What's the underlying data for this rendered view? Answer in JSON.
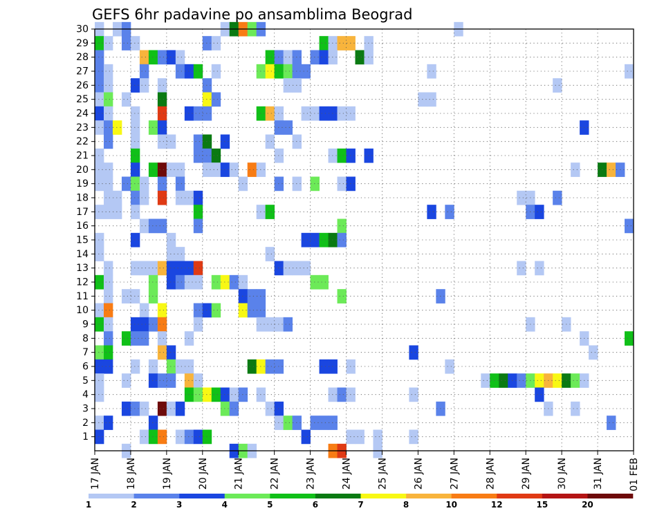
{
  "chart_data": {
    "type": "heatmap",
    "title": "GEFS 6hr padavine po ansamblima Beograd",
    "x_labels": [
      "17 JAN",
      "18 JAN",
      "19 JAN",
      "20 JAN",
      "21 JAN",
      "22 JAN",
      "23 JAN",
      "24 JAN",
      "25 JAN",
      "26 JAN",
      "27 JAN",
      "28 JAN",
      "29 JAN",
      "30 JAN",
      "31 JAN",
      "01 FEB"
    ],
    "y_labels": [
      "1",
      "2",
      "3",
      "4",
      "5",
      "6",
      "7",
      "8",
      "9",
      "10",
      "11",
      "12",
      "13",
      "14",
      "15",
      "16",
      "17",
      "18",
      "19",
      "20",
      "21",
      "22",
      "23",
      "24",
      "25",
      "26",
      "27",
      "28",
      "29",
      "30"
    ],
    "x_range": [
      0,
      60
    ],
    "y_range": [
      0,
      30
    ],
    "grid": true,
    "legend_position": "bottom",
    "legend_labels": [
      "1",
      "2",
      "3",
      "4",
      "5",
      "6",
      "7",
      "8",
      "10",
      "12",
      "15",
      "20"
    ],
    "levels": [
      {
        "level": 1,
        "color": "#b4c8f4"
      },
      {
        "level": 2,
        "color": "#5a82ea"
      },
      {
        "level": 3,
        "color": "#1a46e0"
      },
      {
        "level": 4,
        "color": "#6cea58"
      },
      {
        "level": 5,
        "color": "#10c018"
      },
      {
        "level": 6,
        "color": "#0a7a12"
      },
      {
        "level": 7,
        "color": "#f8f814"
      },
      {
        "level": 8,
        "color": "#f8b43c"
      },
      {
        "level": 9,
        "color": "#f87c14"
      },
      {
        "level": 10,
        "color": "#e03a14"
      },
      {
        "level": 11,
        "color": "#b41414"
      },
      {
        "level": 12,
        "color": "#6e0a0a"
      }
    ],
    "cells": [
      [
        0,
        30,
        1
      ],
      [
        2,
        30,
        1
      ],
      [
        3,
        30,
        2
      ],
      [
        14,
        30,
        1
      ],
      [
        15,
        30,
        6
      ],
      [
        16,
        30,
        9
      ],
      [
        17,
        30,
        4
      ],
      [
        18,
        30,
        2
      ],
      [
        40,
        30,
        1
      ],
      [
        0,
        29,
        5
      ],
      [
        1,
        29,
        1
      ],
      [
        3,
        29,
        2
      ],
      [
        4,
        29,
        1
      ],
      [
        12,
        29,
        2
      ],
      [
        13,
        29,
        1
      ],
      [
        25,
        29,
        5
      ],
      [
        26,
        29,
        1
      ],
      [
        27,
        29,
        8
      ],
      [
        28,
        29,
        8
      ],
      [
        30,
        29,
        1
      ],
      [
        0,
        28,
        2
      ],
      [
        5,
        28,
        8
      ],
      [
        6,
        28,
        5
      ],
      [
        7,
        28,
        2
      ],
      [
        8,
        28,
        3
      ],
      [
        9,
        28,
        1
      ],
      [
        19,
        28,
        5
      ],
      [
        20,
        28,
        2
      ],
      [
        21,
        28,
        1
      ],
      [
        22,
        28,
        2
      ],
      [
        24,
        28,
        2
      ],
      [
        25,
        28,
        3
      ],
      [
        26,
        28,
        1
      ],
      [
        29,
        28,
        6
      ],
      [
        30,
        28,
        1
      ],
      [
        0,
        27,
        2
      ],
      [
        1,
        27,
        1
      ],
      [
        5,
        27,
        2
      ],
      [
        9,
        27,
        2
      ],
      [
        10,
        27,
        3
      ],
      [
        11,
        27,
        5
      ],
      [
        13,
        27,
        1
      ],
      [
        18,
        27,
        4
      ],
      [
        19,
        27,
        7
      ],
      [
        20,
        27,
        5
      ],
      [
        21,
        27,
        4
      ],
      [
        22,
        27,
        2
      ],
      [
        23,
        27,
        2
      ],
      [
        37,
        27,
        1
      ],
      [
        59,
        27,
        1
      ],
      [
        0,
        26,
        2
      ],
      [
        1,
        26,
        1
      ],
      [
        4,
        26,
        3
      ],
      [
        5,
        26,
        1
      ],
      [
        7,
        26,
        1
      ],
      [
        12,
        26,
        2
      ],
      [
        21,
        26,
        1
      ],
      [
        22,
        26,
        1
      ],
      [
        51,
        26,
        1
      ],
      [
        0,
        25,
        1
      ],
      [
        1,
        25,
        4
      ],
      [
        3,
        25,
        1
      ],
      [
        7,
        25,
        6
      ],
      [
        12,
        25,
        7
      ],
      [
        13,
        25,
        2
      ],
      [
        36,
        25,
        1
      ],
      [
        37,
        25,
        1
      ],
      [
        0,
        24,
        3
      ],
      [
        1,
        24,
        1
      ],
      [
        4,
        24,
        1
      ],
      [
        7,
        24,
        10
      ],
      [
        10,
        24,
        3
      ],
      [
        11,
        24,
        2
      ],
      [
        12,
        24,
        2
      ],
      [
        18,
        24,
        5
      ],
      [
        19,
        24,
        8
      ],
      [
        20,
        24,
        1
      ],
      [
        23,
        24,
        1
      ],
      [
        24,
        24,
        1
      ],
      [
        25,
        24,
        3
      ],
      [
        26,
        24,
        3
      ],
      [
        27,
        24,
        1
      ],
      [
        28,
        24,
        1
      ],
      [
        0,
        23,
        1
      ],
      [
        1,
        23,
        2
      ],
      [
        2,
        23,
        7
      ],
      [
        4,
        23,
        1
      ],
      [
        6,
        23,
        4
      ],
      [
        7,
        23,
        3
      ],
      [
        20,
        23,
        2
      ],
      [
        21,
        23,
        2
      ],
      [
        54,
        23,
        3
      ],
      [
        1,
        22,
        2
      ],
      [
        4,
        22,
        1
      ],
      [
        7,
        22,
        1
      ],
      [
        8,
        22,
        1
      ],
      [
        11,
        22,
        2
      ],
      [
        12,
        22,
        6
      ],
      [
        14,
        22,
        3
      ],
      [
        19,
        22,
        1
      ],
      [
        22,
        22,
        1
      ],
      [
        0,
        21,
        1
      ],
      [
        4,
        21,
        5
      ],
      [
        11,
        21,
        2
      ],
      [
        12,
        21,
        2
      ],
      [
        13,
        21,
        6
      ],
      [
        20,
        21,
        1
      ],
      [
        26,
        21,
        1
      ],
      [
        27,
        21,
        5
      ],
      [
        28,
        21,
        3
      ],
      [
        30,
        21,
        3
      ],
      [
        0,
        20,
        1
      ],
      [
        1,
        20,
        1
      ],
      [
        4,
        20,
        3
      ],
      [
        6,
        20,
        5
      ],
      [
        7,
        20,
        12
      ],
      [
        8,
        20,
        1
      ],
      [
        9,
        20,
        1
      ],
      [
        12,
        20,
        1
      ],
      [
        13,
        20,
        1
      ],
      [
        14,
        20,
        3
      ],
      [
        15,
        20,
        1
      ],
      [
        17,
        20,
        9
      ],
      [
        18,
        20,
        1
      ],
      [
        53,
        20,
        1
      ],
      [
        56,
        20,
        6
      ],
      [
        57,
        20,
        8
      ],
      [
        58,
        20,
        2
      ],
      [
        0,
        19,
        1
      ],
      [
        1,
        19,
        1
      ],
      [
        3,
        19,
        2
      ],
      [
        4,
        19,
        4
      ],
      [
        5,
        19,
        1
      ],
      [
        7,
        19,
        2
      ],
      [
        9,
        19,
        2
      ],
      [
        16,
        19,
        1
      ],
      [
        20,
        19,
        2
      ],
      [
        22,
        19,
        1
      ],
      [
        24,
        19,
        4
      ],
      [
        27,
        19,
        1
      ],
      [
        28,
        19,
        3
      ],
      [
        1,
        18,
        1
      ],
      [
        2,
        18,
        1
      ],
      [
        4,
        18,
        2
      ],
      [
        5,
        18,
        1
      ],
      [
        7,
        18,
        10
      ],
      [
        9,
        18,
        1
      ],
      [
        10,
        18,
        1
      ],
      [
        11,
        18,
        3
      ],
      [
        47,
        18,
        1
      ],
      [
        48,
        18,
        1
      ],
      [
        51,
        18,
        2
      ],
      [
        0,
        17,
        1
      ],
      [
        1,
        17,
        1
      ],
      [
        2,
        17,
        1
      ],
      [
        4,
        17,
        1
      ],
      [
        11,
        17,
        5
      ],
      [
        18,
        17,
        1
      ],
      [
        19,
        17,
        5
      ],
      [
        37,
        17,
        3
      ],
      [
        39,
        17,
        2
      ],
      [
        48,
        17,
        2
      ],
      [
        49,
        17,
        3
      ],
      [
        5,
        16,
        1
      ],
      [
        6,
        16,
        2
      ],
      [
        7,
        16,
        2
      ],
      [
        11,
        16,
        2
      ],
      [
        27,
        16,
        4
      ],
      [
        59,
        16,
        2
      ],
      [
        0,
        15,
        1
      ],
      [
        4,
        15,
        3
      ],
      [
        8,
        15,
        1
      ],
      [
        23,
        15,
        3
      ],
      [
        24,
        15,
        3
      ],
      [
        25,
        15,
        5
      ],
      [
        26,
        15,
        6
      ],
      [
        27,
        15,
        2
      ],
      [
        0,
        14,
        1
      ],
      [
        8,
        14,
        1
      ],
      [
        9,
        14,
        1
      ],
      [
        19,
        14,
        1
      ],
      [
        1,
        13,
        1
      ],
      [
        4,
        13,
        1
      ],
      [
        5,
        13,
        1
      ],
      [
        6,
        13,
        1
      ],
      [
        7,
        13,
        8
      ],
      [
        8,
        13,
        3
      ],
      [
        9,
        13,
        3
      ],
      [
        10,
        13,
        3
      ],
      [
        11,
        13,
        10
      ],
      [
        20,
        13,
        3
      ],
      [
        21,
        13,
        1
      ],
      [
        22,
        13,
        1
      ],
      [
        23,
        13,
        1
      ],
      [
        47,
        13,
        1
      ],
      [
        49,
        13,
        1
      ],
      [
        0,
        12,
        5
      ],
      [
        1,
        12,
        1
      ],
      [
        6,
        12,
        4
      ],
      [
        8,
        12,
        3
      ],
      [
        9,
        12,
        2
      ],
      [
        10,
        12,
        1
      ],
      [
        11,
        12,
        1
      ],
      [
        13,
        12,
        4
      ],
      [
        14,
        12,
        7
      ],
      [
        15,
        12,
        2
      ],
      [
        16,
        12,
        1
      ],
      [
        24,
        12,
        4
      ],
      [
        25,
        12,
        4
      ],
      [
        1,
        11,
        1
      ],
      [
        3,
        11,
        1
      ],
      [
        4,
        11,
        1
      ],
      [
        6,
        11,
        4
      ],
      [
        16,
        11,
        3
      ],
      [
        17,
        11,
        2
      ],
      [
        18,
        11,
        2
      ],
      [
        27,
        11,
        4
      ],
      [
        38,
        11,
        2
      ],
      [
        0,
        10,
        1
      ],
      [
        1,
        10,
        9
      ],
      [
        5,
        10,
        1
      ],
      [
        7,
        10,
        7
      ],
      [
        11,
        10,
        2
      ],
      [
        12,
        10,
        3
      ],
      [
        13,
        10,
        4
      ],
      [
        16,
        10,
        7
      ],
      [
        17,
        10,
        2
      ],
      [
        18,
        10,
        2
      ],
      [
        0,
        9,
        5
      ],
      [
        1,
        9,
        1
      ],
      [
        4,
        9,
        3
      ],
      [
        5,
        9,
        3
      ],
      [
        6,
        9,
        2
      ],
      [
        7,
        9,
        9
      ],
      [
        11,
        9,
        1
      ],
      [
        18,
        9,
        1
      ],
      [
        19,
        9,
        1
      ],
      [
        20,
        9,
        1
      ],
      [
        21,
        9,
        2
      ],
      [
        48,
        9,
        1
      ],
      [
        52,
        9,
        1
      ],
      [
        1,
        8,
        2
      ],
      [
        3,
        8,
        5
      ],
      [
        4,
        8,
        2
      ],
      [
        5,
        8,
        2
      ],
      [
        7,
        8,
        1
      ],
      [
        10,
        8,
        1
      ],
      [
        54,
        8,
        1
      ],
      [
        59,
        8,
        5
      ],
      [
        0,
        7,
        4
      ],
      [
        1,
        7,
        5
      ],
      [
        7,
        7,
        8
      ],
      [
        8,
        7,
        3
      ],
      [
        35,
        7,
        3
      ],
      [
        55,
        7,
        1
      ],
      [
        0,
        6,
        3
      ],
      [
        1,
        6,
        3
      ],
      [
        4,
        6,
        1
      ],
      [
        6,
        6,
        1
      ],
      [
        8,
        6,
        4
      ],
      [
        9,
        6,
        1
      ],
      [
        10,
        6,
        1
      ],
      [
        17,
        6,
        6
      ],
      [
        18,
        6,
        7
      ],
      [
        19,
        6,
        2
      ],
      [
        20,
        6,
        2
      ],
      [
        25,
        6,
        3
      ],
      [
        26,
        6,
        3
      ],
      [
        28,
        6,
        1
      ],
      [
        39,
        6,
        1
      ],
      [
        0,
        5,
        1
      ],
      [
        3,
        5,
        1
      ],
      [
        6,
        5,
        3
      ],
      [
        7,
        5,
        2
      ],
      [
        8,
        5,
        2
      ],
      [
        10,
        5,
        8
      ],
      [
        11,
        5,
        1
      ],
      [
        43,
        5,
        1
      ],
      [
        44,
        5,
        5
      ],
      [
        45,
        5,
        6
      ],
      [
        46,
        5,
        3
      ],
      [
        47,
        5,
        2
      ],
      [
        48,
        5,
        4
      ],
      [
        49,
        5,
        7
      ],
      [
        50,
        5,
        8
      ],
      [
        51,
        5,
        7
      ],
      [
        52,
        5,
        6
      ],
      [
        53,
        5,
        4
      ],
      [
        54,
        5,
        1
      ],
      [
        0,
        4,
        1
      ],
      [
        10,
        4,
        5
      ],
      [
        11,
        4,
        4
      ],
      [
        12,
        4,
        7
      ],
      [
        13,
        4,
        5
      ],
      [
        14,
        4,
        3
      ],
      [
        15,
        4,
        1
      ],
      [
        16,
        4,
        2
      ],
      [
        18,
        4,
        1
      ],
      [
        26,
        4,
        1
      ],
      [
        27,
        4,
        2
      ],
      [
        28,
        4,
        1
      ],
      [
        35,
        4,
        1
      ],
      [
        49,
        4,
        3
      ],
      [
        3,
        3,
        3
      ],
      [
        4,
        3,
        2
      ],
      [
        5,
        3,
        1
      ],
      [
        7,
        3,
        12
      ],
      [
        8,
        3,
        1
      ],
      [
        9,
        3,
        3
      ],
      [
        14,
        3,
        4
      ],
      [
        15,
        3,
        2
      ],
      [
        19,
        3,
        1
      ],
      [
        20,
        3,
        3
      ],
      [
        38,
        3,
        2
      ],
      [
        50,
        3,
        1
      ],
      [
        53,
        3,
        1
      ],
      [
        0,
        2,
        1
      ],
      [
        1,
        2,
        3
      ],
      [
        6,
        2,
        3
      ],
      [
        20,
        2,
        1
      ],
      [
        21,
        2,
        4
      ],
      [
        22,
        2,
        2
      ],
      [
        24,
        2,
        2
      ],
      [
        25,
        2,
        2
      ],
      [
        26,
        2,
        2
      ],
      [
        57,
        2,
        2
      ],
      [
        0,
        1,
        3
      ],
      [
        5,
        1,
        1
      ],
      [
        6,
        1,
        5
      ],
      [
        7,
        1,
        9
      ],
      [
        9,
        1,
        1
      ],
      [
        10,
        1,
        2
      ],
      [
        11,
        1,
        3
      ],
      [
        12,
        1,
        5
      ],
      [
        23,
        1,
        3
      ],
      [
        28,
        1,
        1
      ],
      [
        29,
        1,
        1
      ],
      [
        31,
        1,
        1
      ],
      [
        35,
        1,
        1
      ],
      [
        3,
        0,
        1
      ],
      [
        15,
        0,
        3
      ],
      [
        16,
        0,
        4
      ],
      [
        17,
        0,
        1
      ],
      [
        26,
        0,
        9
      ],
      [
        27,
        0,
        10
      ],
      [
        31,
        0,
        1
      ]
    ]
  }
}
